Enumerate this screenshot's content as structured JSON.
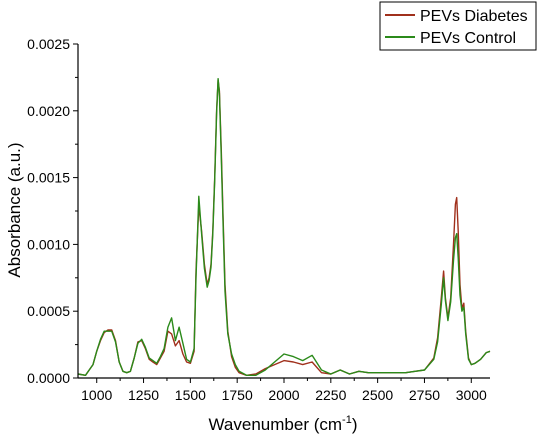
{
  "chart_data": {
    "type": "line",
    "title": "",
    "xlabel": "Wavenumber (cm",
    "xlabel_sup": "-1",
    "xlabel_tail": ")",
    "ylabel": "Absorbance (a.u.)",
    "xlim": [
      900,
      3100
    ],
    "ylim": [
      0,
      0.0025
    ],
    "x_ticks": [
      1000,
      1250,
      1500,
      1750,
      2000,
      2250,
      2500,
      2750,
      3000
    ],
    "x_tick_labels": [
      "1000",
      "1250",
      "1500",
      "1750",
      "2000",
      "2250",
      "2500",
      "2750",
      "3000"
    ],
    "y_ticks": [
      0,
      0.0005,
      0.001,
      0.0015,
      0.002,
      0.0025
    ],
    "y_tick_labels": [
      "0.0000",
      "0.0005",
      "0.0010",
      "0.0015",
      "0.0020",
      "0.0025"
    ],
    "grid": false,
    "legend_position": "top-right",
    "series": [
      {
        "name": "PEVs Diabetes",
        "color": "#a0301c",
        "x": [
          900,
          940,
          960,
          980,
          1000,
          1020,
          1040,
          1060,
          1080,
          1100,
          1120,
          1140,
          1160,
          1180,
          1200,
          1220,
          1240,
          1260,
          1280,
          1300,
          1320,
          1340,
          1360,
          1380,
          1400,
          1420,
          1440,
          1460,
          1480,
          1500,
          1520,
          1530,
          1545,
          1560,
          1575,
          1590,
          1600,
          1610,
          1620,
          1630,
          1640,
          1648,
          1655,
          1665,
          1675,
          1685,
          1700,
          1720,
          1740,
          1760,
          1800,
          1850,
          1900,
          1950,
          2000,
          2050,
          2100,
          2150,
          2200,
          2250,
          2300,
          2350,
          2400,
          2450,
          2500,
          2550,
          2600,
          2650,
          2700,
          2750,
          2800,
          2820,
          2840,
          2852,
          2862,
          2875,
          2890,
          2905,
          2915,
          2922,
          2930,
          2940,
          2950,
          2960,
          2970,
          2985,
          3000,
          3020,
          3050,
          3080,
          3100
        ],
        "y": [
          3e-05,
          2e-05,
          6e-05,
          0.0001,
          0.0002,
          0.00028,
          0.00034,
          0.00036,
          0.00036,
          0.00028,
          0.00012,
          5e-05,
          4e-05,
          5e-05,
          0.00015,
          0.00027,
          0.00028,
          0.00022,
          0.00014,
          0.00012,
          0.0001,
          0.00015,
          0.0002,
          0.00035,
          0.00033,
          0.00024,
          0.00028,
          0.00018,
          0.00012,
          0.00011,
          0.0002,
          0.0008,
          0.00129,
          0.0011,
          0.00085,
          0.0007,
          0.00075,
          0.00085,
          0.0011,
          0.0015,
          0.002,
          0.00223,
          0.00215,
          0.0017,
          0.0012,
          0.0007,
          0.00035,
          0.00016,
          8e-05,
          4e-05,
          2e-05,
          3e-05,
          7e-05,
          0.0001,
          0.00013,
          0.00012,
          0.0001,
          0.00012,
          4e-05,
          3e-05,
          6e-05,
          3e-05,
          5e-05,
          4e-05,
          4e-05,
          4e-05,
          4e-05,
          4e-05,
          5e-05,
          6e-05,
          0.00015,
          0.0003,
          0.0006,
          0.0008,
          0.0006,
          0.00045,
          0.0006,
          0.001,
          0.0013,
          0.00135,
          0.0011,
          0.0007,
          0.00052,
          0.00056,
          0.00035,
          0.00015,
          0.0001,
          0.00011,
          0.00014,
          0.00019,
          0.0002
        ]
      },
      {
        "name": "PEVs Control",
        "color": "#2b8a1a",
        "x": [
          900,
          940,
          960,
          980,
          1000,
          1020,
          1040,
          1060,
          1080,
          1100,
          1120,
          1140,
          1160,
          1180,
          1200,
          1220,
          1240,
          1260,
          1280,
          1300,
          1320,
          1340,
          1360,
          1380,
          1400,
          1420,
          1440,
          1460,
          1480,
          1500,
          1520,
          1530,
          1545,
          1560,
          1575,
          1590,
          1600,
          1610,
          1620,
          1630,
          1640,
          1648,
          1655,
          1665,
          1675,
          1685,
          1700,
          1720,
          1740,
          1760,
          1800,
          1850,
          1900,
          1950,
          2000,
          2050,
          2100,
          2150,
          2200,
          2250,
          2300,
          2350,
          2400,
          2450,
          2500,
          2550,
          2600,
          2650,
          2700,
          2750,
          2800,
          2820,
          2840,
          2852,
          2862,
          2875,
          2890,
          2905,
          2915,
          2922,
          2930,
          2940,
          2950,
          2960,
          2970,
          2985,
          3000,
          3020,
          3050,
          3080,
          3100
        ],
        "y": [
          3e-05,
          2e-05,
          6e-05,
          0.0001,
          0.0002,
          0.00029,
          0.00035,
          0.00035,
          0.00035,
          0.00027,
          0.00012,
          5e-05,
          4e-05,
          5e-05,
          0.00015,
          0.00026,
          0.00029,
          0.00023,
          0.00015,
          0.00013,
          0.00011,
          0.00016,
          0.00022,
          0.00038,
          0.00045,
          0.00028,
          0.00038,
          0.00026,
          0.00014,
          0.00012,
          0.00022,
          0.00075,
          0.00136,
          0.00108,
          0.00082,
          0.00068,
          0.00073,
          0.00083,
          0.00108,
          0.00148,
          0.00198,
          0.00224,
          0.00213,
          0.00165,
          0.00115,
          0.00065,
          0.00033,
          0.00018,
          0.0001,
          5e-05,
          2e-05,
          2e-05,
          6e-05,
          0.00012,
          0.00018,
          0.00016,
          0.00013,
          0.00017,
          6e-05,
          3e-05,
          6e-05,
          3e-05,
          5e-05,
          4e-05,
          4e-05,
          4e-05,
          4e-05,
          4e-05,
          5e-05,
          6e-05,
          0.00014,
          0.00027,
          0.00055,
          0.00075,
          0.00058,
          0.00043,
          0.00057,
          0.00088,
          0.00105,
          0.00108,
          0.0009,
          0.00062,
          0.0005,
          0.00053,
          0.00033,
          0.00014,
          0.0001,
          0.00011,
          0.00014,
          0.00019,
          0.0002
        ]
      }
    ]
  }
}
